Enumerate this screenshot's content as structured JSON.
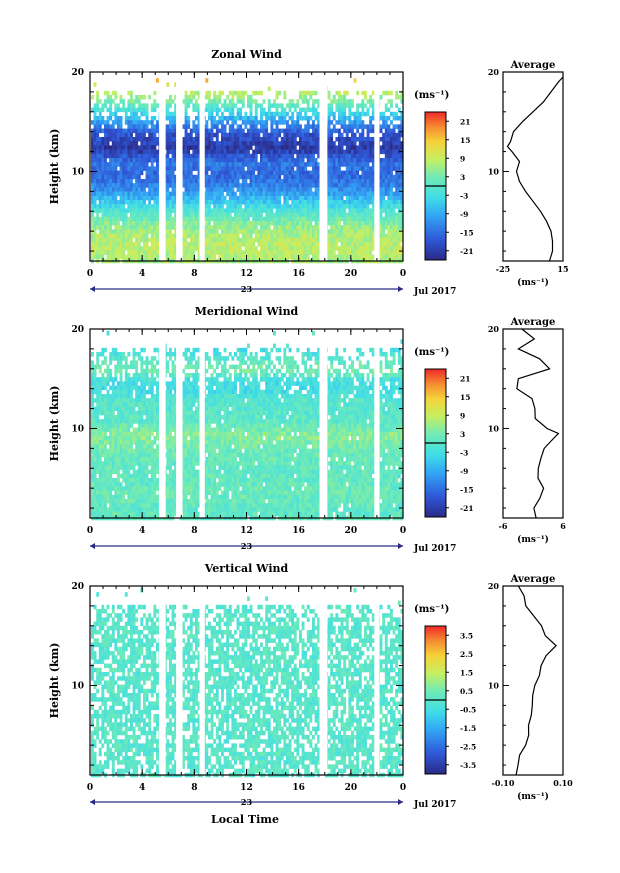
{
  "figure": {
    "x_label": "Local Time",
    "date_label": "Jul 2017",
    "day_label": "23",
    "y_label": "Height (km)",
    "avg_title": "Average",
    "unit": "(ms⁻¹)"
  },
  "chart_data": [
    {
      "type": "heatmap",
      "title": "Zonal Wind",
      "ylabel": "Height (km)",
      "xlabel": "Local Time",
      "xlim": [
        0,
        24
      ],
      "ylim": [
        1,
        20
      ],
      "x_ticks": [
        "0",
        "4",
        "8",
        "12",
        "16",
        "20",
        "0"
      ],
      "y_ticks": [
        "10",
        "20"
      ],
      "colorbar": {
        "ticks": [
          "21",
          "15",
          "9",
          "3",
          "-3",
          "-9",
          "-15",
          "-21"
        ],
        "range": [
          -24,
          24
        ]
      },
      "gaps_hours": [
        [
          5.3,
          5.8
        ],
        [
          6.6,
          7.1
        ],
        [
          8.4,
          8.8
        ],
        [
          17.6,
          18.2
        ],
        [
          21.8,
          22.2
        ]
      ],
      "profile": {
        "title": "Average",
        "xlim": [
          -25,
          15
        ],
        "x_ticks": [
          "-25",
          "15"
        ],
        "y_ticks": [
          "10",
          "20"
        ],
        "height_km": [
          1,
          2,
          3,
          4,
          5,
          6,
          7,
          8,
          9,
          10,
          11,
          12,
          12.5,
          13,
          14,
          15,
          16,
          17,
          18,
          19,
          19.5
        ],
        "value": [
          6,
          8,
          8,
          7,
          4,
          0,
          -5,
          -10,
          -14,
          -16,
          -14,
          -19,
          -22,
          -20,
          -18,
          -12,
          -5,
          2,
          7,
          12,
          15
        ]
      }
    },
    {
      "type": "heatmap",
      "title": "Meridional Wind",
      "ylabel": "Height (km)",
      "xlabel": "Local Time",
      "xlim": [
        0,
        24
      ],
      "ylim": [
        1,
        20
      ],
      "x_ticks": [
        "0",
        "4",
        "8",
        "12",
        "16",
        "20",
        "0"
      ],
      "y_ticks": [
        "10",
        "20"
      ],
      "colorbar": {
        "ticks": [
          "21",
          "15",
          "9",
          "3",
          "-3",
          "-9",
          "-15",
          "-21"
        ],
        "range": [
          -24,
          24
        ]
      },
      "gaps_hours": [
        [
          5.3,
          5.8
        ],
        [
          6.6,
          7.1
        ],
        [
          8.4,
          8.8
        ],
        [
          17.6,
          18.2
        ],
        [
          21.8,
          22.2
        ]
      ],
      "profile": {
        "title": "Average",
        "xlim": [
          -6,
          6
        ],
        "x_ticks": [
          "-6",
          "6"
        ],
        "y_ticks": [
          "10",
          "20"
        ],
        "height_km": [
          1,
          2,
          3,
          4,
          5,
          6,
          7,
          8,
          9,
          9.5,
          10,
          11,
          12,
          13,
          14,
          15,
          16,
          17,
          18,
          19,
          20
        ],
        "value": [
          1,
          0.5,
          1.5,
          2,
          1,
          1,
          1.5,
          2,
          4,
          5,
          3,
          0.5,
          0,
          -0.5,
          -3,
          -3,
          3,
          1,
          -3,
          0,
          -2
        ]
      }
    },
    {
      "type": "heatmap",
      "title": "Vertical Wind",
      "ylabel": "Height (km)",
      "xlabel": "Local Time",
      "xlim": [
        0,
        24
      ],
      "ylim": [
        1,
        20
      ],
      "x_ticks": [
        "0",
        "4",
        "8",
        "12",
        "16",
        "20",
        "0"
      ],
      "y_ticks": [
        "10",
        "20"
      ],
      "colorbar": {
        "ticks": [
          "3.5",
          "2.5",
          "1.5",
          "0.5",
          "-0.5",
          "-1.5",
          "-2.5",
          "-3.5"
        ],
        "range": [
          -4,
          4
        ]
      },
      "gaps_hours": [
        [
          5.3,
          5.8
        ],
        [
          6.6,
          7.1
        ],
        [
          8.4,
          8.8
        ],
        [
          17.6,
          18.2
        ],
        [
          21.8,
          22.2
        ]
      ],
      "profile": {
        "title": "Average",
        "xlim": [
          -0.1,
          0.1
        ],
        "x_ticks": [
          "-0.10",
          "0.10"
        ],
        "y_ticks": [
          "10",
          "20"
        ],
        "height_km": [
          1,
          2,
          3,
          4,
          5,
          6,
          7,
          8,
          9,
          10,
          11,
          12,
          13,
          14,
          15,
          16,
          17,
          18,
          19,
          20
        ],
        "value": [
          -0.06,
          -0.05,
          -0.04,
          -0.03,
          -0.02,
          -0.02,
          -0.01,
          0.0,
          0.0,
          0.01,
          0.02,
          0.03,
          0.05,
          0.08,
          0.04,
          0.03,
          0.0,
          -0.02,
          -0.03,
          -0.05
        ]
      }
    }
  ]
}
